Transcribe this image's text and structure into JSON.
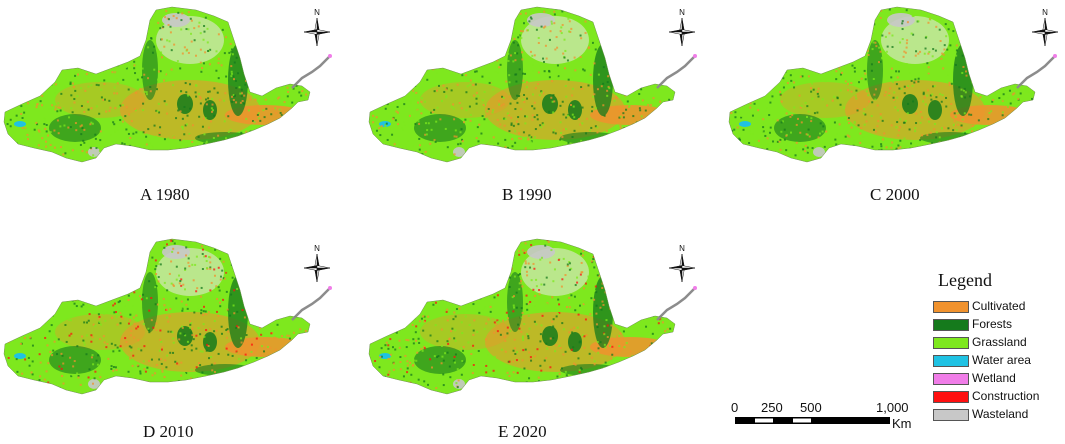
{
  "panels": [
    {
      "id": "A",
      "caption": "A 1980"
    },
    {
      "id": "B",
      "caption": "B 1990"
    },
    {
      "id": "C",
      "caption": "C 2000"
    },
    {
      "id": "D",
      "caption": "D 2010"
    },
    {
      "id": "E",
      "caption": "E 2020"
    }
  ],
  "north_arrow": {
    "letter": "N"
  },
  "legend": {
    "title": "Legend",
    "items": [
      {
        "label": "Cultivated",
        "color": "#f0922e"
      },
      {
        "label": "Forests",
        "color": "#157a1c"
      },
      {
        "label": "Grassland",
        "color": "#7ee81e"
      },
      {
        "label": "Water area",
        "color": "#1fc2e3"
      },
      {
        "label": "Wetland",
        "color": "#f07de8"
      },
      {
        "label": "Construction",
        "color": "#ff1010"
      },
      {
        "label": "Wasteland",
        "color": "#c8c8c8"
      }
    ]
  },
  "scale_bar": {
    "labels": [
      "0",
      "250",
      "500",
      "1,000"
    ],
    "unit": "Km"
  }
}
